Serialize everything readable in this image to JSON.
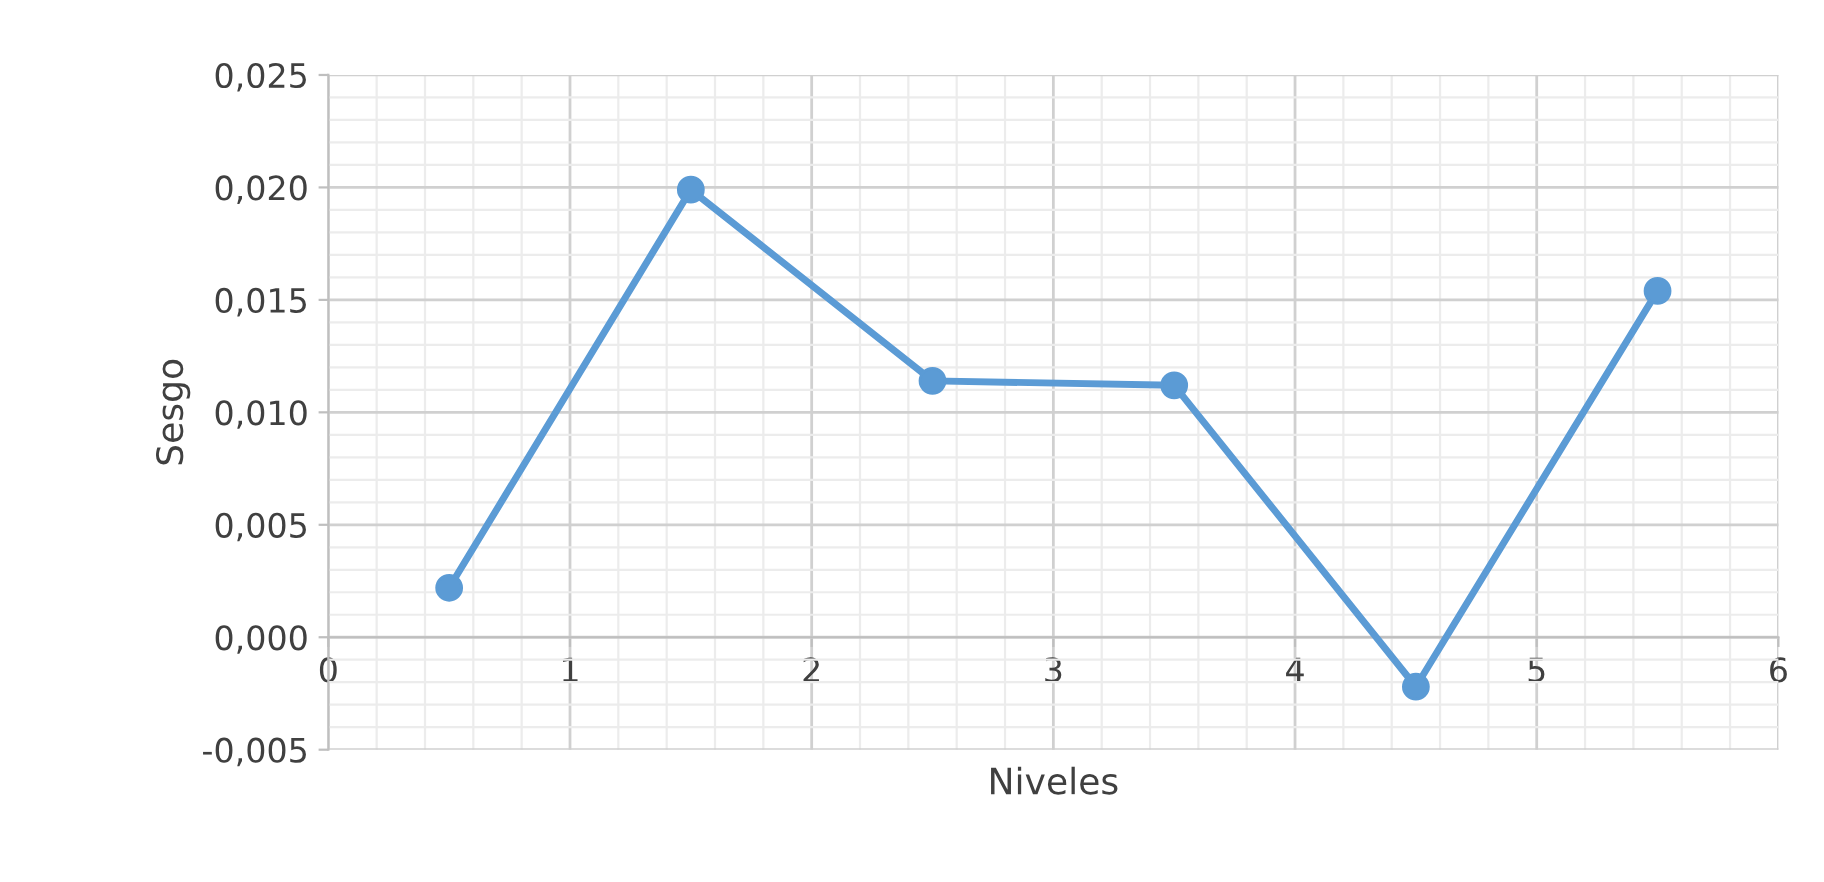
{
  "chart_data": {
    "type": "line",
    "xlabel": "Niveles",
    "ylabel": "Sesgo",
    "x": [
      0.5,
      1.5,
      2.5,
      3.5,
      4.5,
      5.5
    ],
    "series": [
      {
        "color": "#5b9bd5",
        "values": [
          0.0022,
          0.0199,
          0.0114,
          0.0112,
          -0.0022,
          0.0154
        ]
      }
    ],
    "xlim": [
      0,
      6
    ],
    "xticks": [
      0,
      1,
      2,
      3,
      4,
      5,
      6
    ],
    "ylim": [
      -0.005,
      0.025
    ],
    "yticks": [
      {
        "value": -0.005,
        "label": "-0,005"
      },
      {
        "value": 0,
        "label": "0,000"
      },
      {
        "value": 0.005,
        "label": "0,005"
      },
      {
        "value": 0.01,
        "label": "0,010"
      },
      {
        "value": 0.015,
        "label": "0,015"
      },
      {
        "value": 0.02,
        "label": "0,020"
      },
      {
        "value": 0.025,
        "label": "0,025"
      }
    ],
    "grid": true,
    "marker": "circle",
    "line_style": "solid"
  }
}
